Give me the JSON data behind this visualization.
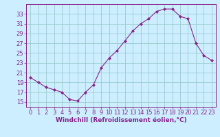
{
  "x": [
    0,
    1,
    2,
    3,
    4,
    5,
    6,
    7,
    8,
    9,
    10,
    11,
    12,
    13,
    14,
    15,
    16,
    17,
    18,
    19,
    20,
    21,
    22,
    23
  ],
  "y": [
    20,
    19,
    18,
    17.5,
    17,
    15.5,
    15.2,
    17,
    18.5,
    22,
    24,
    25.5,
    27.5,
    29.5,
    31,
    32,
    33.5,
    34,
    34,
    32.5,
    32,
    27,
    24.5,
    23.5
  ],
  "line_color": "#882288",
  "marker": "D",
  "marker_size": 2.0,
  "bg_color": "#cceeff",
  "grid_color": "#99cccc",
  "axis_color": "#882288",
  "tick_color": "#882288",
  "xlabel": "Windchill (Refroidissement éolien,°C)",
  "xlabel_fontsize": 6.5,
  "tick_fontsize": 6.0,
  "ylim": [
    14,
    35
  ],
  "yticks": [
    15,
    17,
    19,
    21,
    23,
    25,
    27,
    29,
    31,
    33
  ],
  "xlim": [
    -0.5,
    23.5
  ],
  "xticks": [
    0,
    1,
    2,
    3,
    4,
    5,
    6,
    7,
    8,
    9,
    10,
    11,
    12,
    13,
    14,
    15,
    16,
    17,
    18,
    19,
    20,
    21,
    22,
    23
  ]
}
